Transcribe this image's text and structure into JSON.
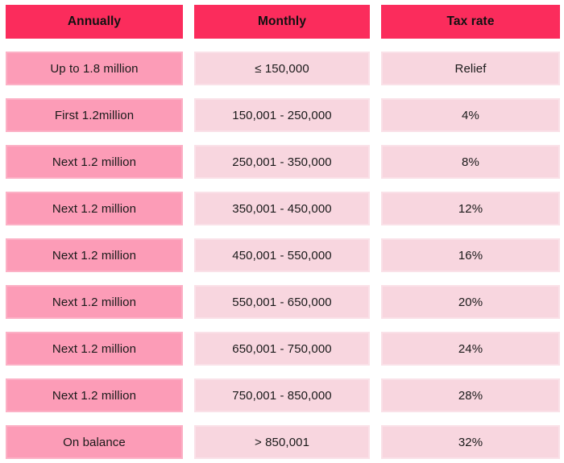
{
  "chart_data": {
    "type": "table",
    "columns": [
      "Annually",
      "Monthly",
      "Tax rate"
    ],
    "rows": [
      [
        "Up to 1.8 million",
        "≤ 150,000",
        "Relief"
      ],
      [
        "First 1.2million",
        "150,001 - 250,000",
        "4%"
      ],
      [
        "Next 1.2 million",
        "250,001 - 350,000",
        "8%"
      ],
      [
        "Next 1.2 million",
        "350,001 - 450,000",
        "12%"
      ],
      [
        "Next 1.2 million",
        "450,001 - 550,000",
        "16%"
      ],
      [
        "Next 1.2 million",
        "550,001 - 650,000",
        "20%"
      ],
      [
        "Next 1.2 million",
        "650,001 - 750,000",
        "24%"
      ],
      [
        "Next 1.2 million",
        "750,001 - 850,000",
        "28%"
      ],
      [
        "On balance",
        "> 850,001",
        "32%"
      ]
    ]
  },
  "colors": {
    "header_bg": "#FB2C5C",
    "annually_bg": "#FC9CB7",
    "value_bg": "#F8D6DF",
    "text": "#1A1A1A",
    "background": "#FFFFFF"
  }
}
